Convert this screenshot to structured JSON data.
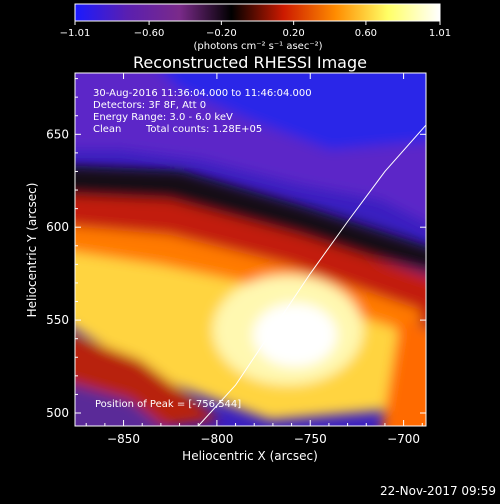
{
  "chart_data": {
    "type": "heatmap",
    "title": "Reconstructed RHESSI Image",
    "xlabel": "Heliocentric X (arcsec)",
    "ylabel": "Heliocentric Y (arcsec)",
    "xlim": [
      -876,
      -688
    ],
    "ylim": [
      493,
      683
    ],
    "xticks": [
      -850,
      -800,
      -750,
      -700
    ],
    "yticks": [
      500,
      550,
      600,
      650
    ],
    "xtick_labels": [
      "−850",
      "−800",
      "−750",
      "−700"
    ],
    "ytick_labels": [
      "500",
      "550",
      "600",
      "650"
    ],
    "colorbar": {
      "range": [
        -1.01,
        1.01
      ],
      "ticks": [
        -1.01,
        -0.6,
        -0.2,
        0.2,
        0.6,
        1.01
      ],
      "tick_labels": [
        "−1.01",
        "−0.60",
        "−0.20",
        "0.20",
        "0.60",
        "1.01"
      ],
      "unit_label": "(photons cm⁻² s⁻¹ asec⁻²)",
      "colors": [
        "#1a1aff",
        "#5a1fb0",
        "#7a2a8a",
        "#000000",
        "#cc1a00",
        "#ff8c00",
        "#ffff66",
        "#ffffff"
      ]
    },
    "annotations": {
      "time_range": "30-Aug-2016 11:36:04.000 to 11:46:04.000",
      "detectors": "Detectors: 3F 8F, Att 0",
      "energy": "Energy Range: 3.0 - 6.0 keV",
      "method": "Clean",
      "counts": "Total counts: 1.28E+05",
      "peak": "Position of Peak = [-756,544]"
    },
    "peak": [
      -756,
      544
    ],
    "limb_curve": [
      [
        -810,
        493
      ],
      [
        -790,
        515
      ],
      [
        -770,
        545
      ],
      [
        -750,
        575
      ],
      [
        -730,
        603
      ],
      [
        -710,
        630
      ],
      [
        -688,
        655
      ]
    ]
  },
  "footer_timestamp": "22-Nov-2017 09:59"
}
